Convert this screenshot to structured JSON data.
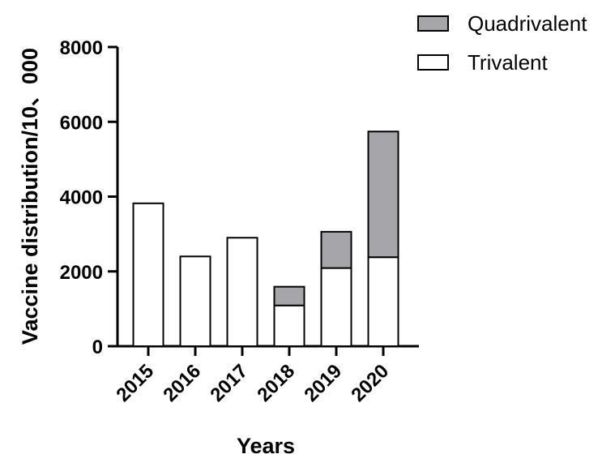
{
  "chart_data": {
    "type": "bar",
    "stacked": true,
    "categories": [
      "2015",
      "2016",
      "2017",
      "2018",
      "2019",
      "2020"
    ],
    "series": [
      {
        "name": "Trivalent",
        "values": [
          3820,
          2400,
          2900,
          1090,
          2090,
          2380
        ],
        "color": "#ffffff"
      },
      {
        "name": "Quadrivalent",
        "values": [
          0,
          0,
          0,
          500,
          970,
          3360
        ],
        "color": "#a6a6aa"
      }
    ],
    "legend_order": [
      "Quadrivalent",
      "Trivalent"
    ],
    "legend_position": "top-right",
    "title": "",
    "xlabel": "Years",
    "ylabel": "Vaccine distribution/10、000",
    "ylim": [
      0,
      8000
    ],
    "yticks": [
      0,
      2000,
      4000,
      6000,
      8000
    ],
    "ytick_labels": [
      "0",
      "2000",
      "4000",
      "6000",
      "8000"
    ],
    "grid": false
  }
}
